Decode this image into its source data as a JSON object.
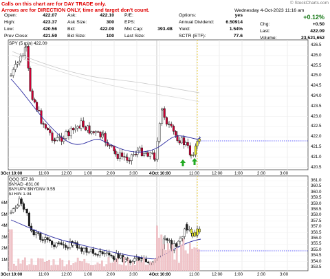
{
  "note": {
    "line1": "Calls on this chart are for DAY TRADE only.",
    "line2": "Arrows are for DIRECTION ONLY, time and target don't count."
  },
  "watermark": "© StockCharts.com",
  "quote": {
    "date": "Wednesday  4-Oct-2023  11:16 am",
    "pct_change": "+0.12%",
    "open_label": "Open:",
    "open": "422.07",
    "high_label": "High:",
    "high": "423.37",
    "low_label": "Low:",
    "low": "420.56",
    "prev_label": "Prev Close:",
    "prev": "421.59",
    "ask_label": "Ask:",
    "ask": "422.10",
    "asksize_label": "Ask Size:",
    "asksize": "300",
    "bid_label": "Bid:",
    "bid": "422.09",
    "bidsize_label": "Bid Size:",
    "bidsize": "100",
    "pe_label": "P/E:",
    "pe": "",
    "eps_label": "EPS:",
    "eps": "",
    "mktcap_label": "Mkt Cap:",
    "mktcap": "393.4B",
    "lastsize_label": "Last Size:",
    "lastsize": "",
    "options_label": "Options:",
    "options": "yes",
    "div_label": "Annual Dividend:",
    "div": "6.50914",
    "yield_label": "Yield:",
    "yield": "1.54%",
    "sctr_label": "SCTR (ETF):",
    "sctr": "77.6",
    "chg_label": "Chg:",
    "chg": "+0.50",
    "last_label": "Last:",
    "last": "422.09",
    "volume_label": "Volume:",
    "volume": "23,521,652"
  },
  "upper": {
    "title": "SPY (5 min) 422.09",
    "y_ticks": [
      "426.5",
      "426.0",
      "425.5",
      "425.0",
      "424.5",
      "424.0",
      "423.5",
      "423.0",
      "422.5",
      "422.0",
      "421.5",
      "421.0",
      "420.5"
    ],
    "x_ticks": [
      "3Oct 10:00",
      "11:00",
      "12:00",
      "1:00",
      "2:00",
      "3:00",
      "4Oct 10:00",
      "11:00",
      "12:00",
      "1:00",
      "2:00",
      "3:00"
    ]
  },
  "lower": {
    "title1": "QQQ 357.36",
    "title2": "$NYAD -831.00",
    "title3": "$NYUPV:$NYDNV 0.55",
    "title4": "$TRIN 1.04",
    "y_ticks": [
      "361.0",
      "360.5",
      "360.0",
      "359.5",
      "359.0",
      "358.5",
      "358.0",
      "357.5",
      "357.0",
      "356.5",
      "356.0",
      "355.5",
      "355.0",
      "354.5",
      "354.0",
      "353.5"
    ],
    "vol_ticks": [
      "6M",
      "5M",
      "4M",
      "3M",
      "2M",
      "1M"
    ],
    "x_ticks": [
      "3Oct 10:00",
      "11:00",
      "12:00",
      "1:00",
      "2:00",
      "3:00",
      "4Oct 10:00",
      "11:00",
      "12:00",
      "1:00",
      "2:00",
      "3:00"
    ]
  },
  "colors": {
    "up": "#ffffff",
    "down": "#cc0033",
    "ma": "#2a2aa0",
    "today": "#e8e82a",
    "arrow": "#22aa22",
    "hline": "#3333ff"
  }
}
